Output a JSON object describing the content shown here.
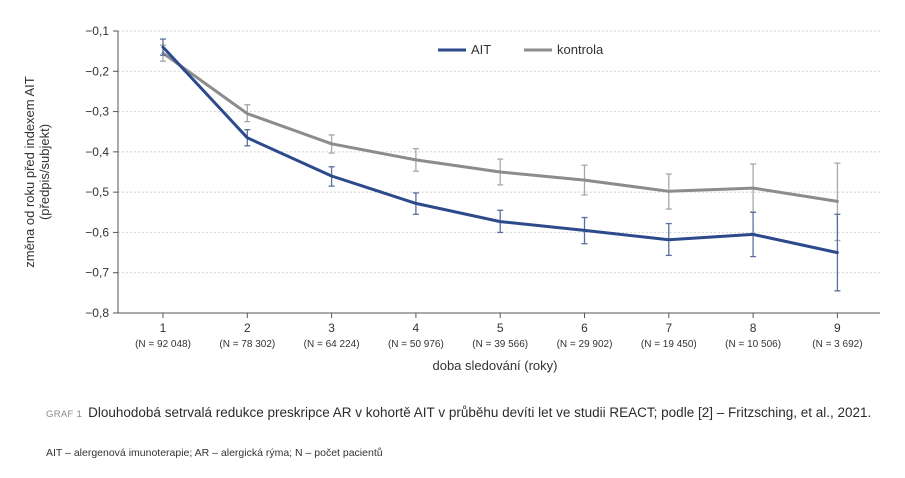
{
  "chart_data": {
    "type": "line",
    "xlabel": "doba sledování (roky)",
    "ylabel_line1": "změna od roku před indexem AIT",
    "ylabel_line2": "(předpis/subjekt)",
    "ylim": [
      -0.8,
      -0.1
    ],
    "yticks": [
      "−0,1",
      "−0,2",
      "−0,3",
      "−0,4",
      "−0,5",
      "−0,6",
      "−0,7",
      "−0,8"
    ],
    "ytick_values": [
      -0.1,
      -0.2,
      -0.3,
      -0.4,
      -0.5,
      -0.6,
      -0.7,
      -0.8
    ],
    "grid": "horizontal dotted",
    "legend_position": "top-center",
    "categories": [
      "1",
      "2",
      "3",
      "4",
      "5",
      "6",
      "7",
      "8",
      "9"
    ],
    "n_labels": [
      "(N = 92 048)",
      "(N = 78 302)",
      "(N = 64 224)",
      "(N = 50 976)",
      "(N = 39 566)",
      "(N = 29 902)",
      "(N = 19 450)",
      "(N = 10 506)",
      "(N = 3 692)"
    ],
    "series": [
      {
        "name": "AIT",
        "color": "#2c4a8c",
        "values": [
          -0.14,
          -0.365,
          -0.46,
          -0.528,
          -0.573,
          -0.595,
          -0.618,
          -0.605,
          -0.65
        ],
        "err_low": [
          -0.16,
          -0.385,
          -0.485,
          -0.555,
          -0.6,
          -0.628,
          -0.657,
          -0.66,
          -0.745
        ],
        "err_high": [
          -0.12,
          -0.345,
          -0.437,
          -0.502,
          -0.545,
          -0.563,
          -0.578,
          -0.55,
          -0.555
        ]
      },
      {
        "name": "kontrola",
        "color": "#8c8c8c",
        "values": [
          -0.155,
          -0.305,
          -0.38,
          -0.42,
          -0.45,
          -0.47,
          -0.498,
          -0.49,
          -0.523
        ],
        "err_low": [
          -0.175,
          -0.325,
          -0.403,
          -0.448,
          -0.482,
          -0.507,
          -0.542,
          -0.55,
          -0.62
        ],
        "err_high": [
          -0.135,
          -0.283,
          -0.358,
          -0.392,
          -0.418,
          -0.433,
          -0.455,
          -0.43,
          -0.428
        ]
      }
    ]
  },
  "caption": {
    "label": "GRAF 1",
    "text": "Dlouhodobá setrvalá redukce preskripce AR v kohortě AIT v průběhu devíti let ve studii REACT; podle [2] – Fritz­sching, et al., 2021."
  },
  "footnote": "AIT – alergenová imunoterapie; AR – alergická rýma; N – počet pacientů"
}
